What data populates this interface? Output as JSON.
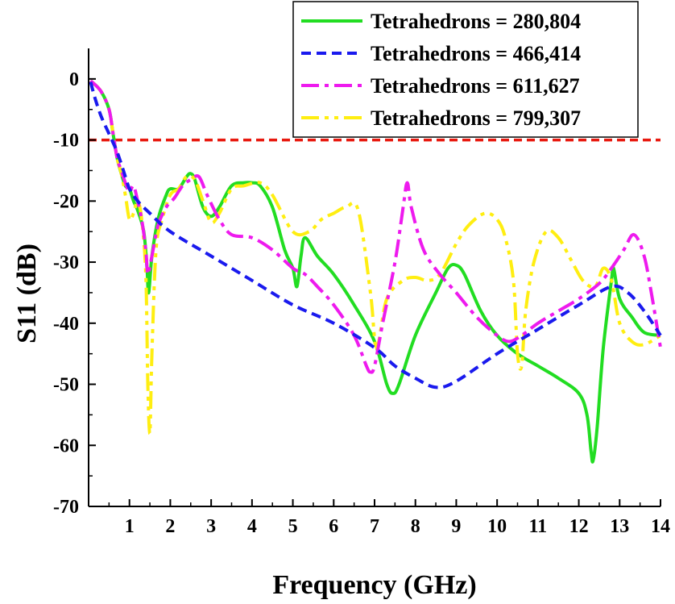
{
  "chart_data": {
    "type": "line",
    "title": "",
    "xlabel": "Frequency (GHz)",
    "ylabel": "S11 (dB)",
    "xlim": [
      0,
      14
    ],
    "ylim": [
      -70,
      5
    ],
    "x_ticks": [
      1,
      2,
      3,
      4,
      5,
      6,
      7,
      8,
      9,
      10,
      11,
      12,
      13,
      14
    ],
    "x_tick_labels": [
      "1",
      "2",
      "3",
      "4",
      "5",
      "6",
      "7",
      "8",
      "9",
      "10",
      "11",
      "12",
      "13",
      "14"
    ],
    "y_ticks": [
      0,
      -10,
      -20,
      -30,
      -40,
      -50,
      -60,
      -70
    ],
    "y_tick_labels": [
      "0",
      "-10",
      "-20",
      "-30",
      "-40",
      "-50",
      "-60",
      "-70"
    ],
    "legend_position": "top-right",
    "reference_line": {
      "y": -10,
      "color": "#e8190f",
      "style": "dashed"
    },
    "series": [
      {
        "name": "Tetrahedrons = 280,804",
        "color": "#22dd22",
        "dash": "solid",
        "points": [
          [
            0.05,
            -0.3
          ],
          [
            0.3,
            -2
          ],
          [
            0.5,
            -5
          ],
          [
            0.6,
            -9
          ],
          [
            0.7,
            -13
          ],
          [
            0.8,
            -15.5
          ],
          [
            0.9,
            -17.5
          ],
          [
            1.0,
            -18
          ],
          [
            1.1,
            -20
          ],
          [
            1.2,
            -21.5
          ],
          [
            1.35,
            -25
          ],
          [
            1.43,
            -31
          ],
          [
            1.47,
            -35
          ],
          [
            1.55,
            -29
          ],
          [
            1.7,
            -23
          ],
          [
            1.9,
            -19
          ],
          [
            2.0,
            -18
          ],
          [
            2.2,
            -18
          ],
          [
            2.4,
            -16
          ],
          [
            2.5,
            -15.5
          ],
          [
            2.6,
            -16.5
          ],
          [
            2.8,
            -21
          ],
          [
            3.0,
            -22.5
          ],
          [
            3.2,
            -21
          ],
          [
            3.5,
            -17.5
          ],
          [
            3.8,
            -17
          ],
          [
            4.0,
            -17
          ],
          [
            4.2,
            -17.5
          ],
          [
            4.5,
            -21
          ],
          [
            4.8,
            -28
          ],
          [
            5.0,
            -31
          ],
          [
            5.1,
            -34
          ],
          [
            5.2,
            -29
          ],
          [
            5.3,
            -26
          ],
          [
            5.6,
            -29
          ],
          [
            6.0,
            -32
          ],
          [
            6.5,
            -37
          ],
          [
            7.0,
            -43
          ],
          [
            7.3,
            -50
          ],
          [
            7.45,
            -51.5
          ],
          [
            7.6,
            -50
          ],
          [
            8.0,
            -42
          ],
          [
            8.5,
            -35
          ],
          [
            8.8,
            -31
          ],
          [
            9.0,
            -30.5
          ],
          [
            9.2,
            -32
          ],
          [
            9.6,
            -38
          ],
          [
            10.0,
            -42
          ],
          [
            10.5,
            -45
          ],
          [
            11.0,
            -47
          ],
          [
            11.5,
            -49
          ],
          [
            12.0,
            -51.5
          ],
          [
            12.2,
            -55
          ],
          [
            12.3,
            -61
          ],
          [
            12.35,
            -62.5
          ],
          [
            12.45,
            -57
          ],
          [
            12.6,
            -44
          ],
          [
            12.8,
            -33
          ],
          [
            12.85,
            -31
          ],
          [
            13.0,
            -36
          ],
          [
            13.3,
            -39
          ],
          [
            13.6,
            -41.5
          ],
          [
            14.0,
            -42
          ]
        ]
      },
      {
        "name": "Tetrahedrons = 466,414",
        "color": "#1a1aee",
        "dash": "dashed",
        "points": [
          [
            0.05,
            -0.5
          ],
          [
            0.15,
            -3
          ],
          [
            0.3,
            -6
          ],
          [
            0.5,
            -9
          ],
          [
            0.7,
            -12
          ],
          [
            0.9,
            -16
          ],
          [
            1.0,
            -18
          ],
          [
            1.2,
            -20
          ],
          [
            1.5,
            -22
          ],
          [
            2.0,
            -25
          ],
          [
            3.0,
            -29
          ],
          [
            4.0,
            -33
          ],
          [
            5.0,
            -37
          ],
          [
            6.0,
            -40
          ],
          [
            7.0,
            -44
          ],
          [
            7.5,
            -47
          ],
          [
            8.0,
            -49
          ],
          [
            8.5,
            -50.5
          ],
          [
            9.0,
            -49.5
          ],
          [
            10.0,
            -45
          ],
          [
            11.0,
            -41
          ],
          [
            12.0,
            -37
          ],
          [
            12.8,
            -34
          ],
          [
            13.2,
            -35
          ],
          [
            13.6,
            -38
          ],
          [
            14.0,
            -42
          ]
        ]
      },
      {
        "name": "Tetrahedrons = 611,627",
        "color": "#ee1aee",
        "dash": "dashdot",
        "points": [
          [
            0.05,
            -0.3
          ],
          [
            0.3,
            -2
          ],
          [
            0.5,
            -5
          ],
          [
            0.6,
            -9
          ],
          [
            0.7,
            -13
          ],
          [
            0.8,
            -15
          ],
          [
            0.9,
            -17
          ],
          [
            1.0,
            -18.5
          ],
          [
            1.1,
            -17.5
          ],
          [
            1.2,
            -20
          ],
          [
            1.3,
            -23
          ],
          [
            1.4,
            -28
          ],
          [
            1.45,
            -32
          ],
          [
            1.55,
            -29
          ],
          [
            1.7,
            -24
          ],
          [
            1.9,
            -21
          ],
          [
            2.1,
            -19.5
          ],
          [
            2.3,
            -17.5
          ],
          [
            2.5,
            -16.5
          ],
          [
            2.7,
            -16
          ],
          [
            2.9,
            -19
          ],
          [
            3.2,
            -23
          ],
          [
            3.5,
            -25.5
          ],
          [
            4.0,
            -26
          ],
          [
            4.5,
            -28
          ],
          [
            5.0,
            -31
          ],
          [
            5.3,
            -32
          ],
          [
            5.6,
            -34
          ],
          [
            6.0,
            -37
          ],
          [
            6.5,
            -42
          ],
          [
            6.8,
            -47
          ],
          [
            6.9,
            -48
          ],
          [
            7.0,
            -47
          ],
          [
            7.2,
            -40
          ],
          [
            7.5,
            -30
          ],
          [
            7.7,
            -21
          ],
          [
            7.8,
            -17
          ],
          [
            7.9,
            -21
          ],
          [
            8.2,
            -28
          ],
          [
            8.6,
            -32
          ],
          [
            9.0,
            -35
          ],
          [
            9.5,
            -39
          ],
          [
            10.0,
            -42
          ],
          [
            10.3,
            -43
          ],
          [
            10.6,
            -42
          ],
          [
            11.0,
            -40
          ],
          [
            11.5,
            -38
          ],
          [
            12.0,
            -36
          ],
          [
            12.5,
            -33.5
          ],
          [
            12.8,
            -31
          ],
          [
            13.1,
            -28
          ],
          [
            13.35,
            -25.5
          ],
          [
            13.6,
            -29
          ],
          [
            13.8,
            -36
          ],
          [
            14.0,
            -44
          ]
        ]
      },
      {
        "name": "Tetrahedrons = 799,307",
        "color": "#ffee11",
        "dash": "dashdotdot",
        "points": [
          [
            0.05,
            -0.3
          ],
          [
            0.3,
            -2
          ],
          [
            0.5,
            -5
          ],
          [
            0.6,
            -9
          ],
          [
            0.7,
            -13
          ],
          [
            0.8,
            -15.5
          ],
          [
            0.9,
            -19
          ],
          [
            1.0,
            -23
          ],
          [
            1.1,
            -22
          ],
          [
            1.2,
            -20
          ],
          [
            1.3,
            -23
          ],
          [
            1.4,
            -32
          ],
          [
            1.45,
            -50
          ],
          [
            1.5,
            -58
          ],
          [
            1.55,
            -45
          ],
          [
            1.65,
            -28
          ],
          [
            1.8,
            -23
          ],
          [
            2.0,
            -19
          ],
          [
            2.2,
            -18
          ],
          [
            2.4,
            -16
          ],
          [
            2.6,
            -16.5
          ],
          [
            2.8,
            -20
          ],
          [
            3.0,
            -23.5
          ],
          [
            3.2,
            -22
          ],
          [
            3.5,
            -18
          ],
          [
            3.8,
            -17.5
          ],
          [
            4.2,
            -17
          ],
          [
            4.5,
            -19
          ],
          [
            5.0,
            -25
          ],
          [
            5.4,
            -25
          ],
          [
            5.7,
            -23
          ],
          [
            6.0,
            -22
          ],
          [
            6.3,
            -21
          ],
          [
            6.6,
            -21.5
          ],
          [
            6.9,
            -35
          ],
          [
            7.05,
            -44
          ],
          [
            7.3,
            -36
          ],
          [
            7.7,
            -33
          ],
          [
            8.0,
            -32.5
          ],
          [
            8.3,
            -33
          ],
          [
            8.6,
            -32
          ],
          [
            9.0,
            -27
          ],
          [
            9.3,
            -24
          ],
          [
            9.7,
            -22
          ],
          [
            10.0,
            -23
          ],
          [
            10.2,
            -26
          ],
          [
            10.4,
            -33
          ],
          [
            10.5,
            -45
          ],
          [
            10.6,
            -47
          ],
          [
            10.7,
            -38
          ],
          [
            10.9,
            -30
          ],
          [
            11.2,
            -25
          ],
          [
            11.5,
            -26
          ],
          [
            11.8,
            -29.5
          ],
          [
            12.1,
            -33
          ],
          [
            12.4,
            -34
          ],
          [
            12.6,
            -31
          ],
          [
            12.8,
            -33
          ],
          [
            13.0,
            -40
          ],
          [
            13.3,
            -43
          ],
          [
            13.6,
            -43.5
          ],
          [
            14.0,
            -42
          ]
        ]
      }
    ]
  }
}
